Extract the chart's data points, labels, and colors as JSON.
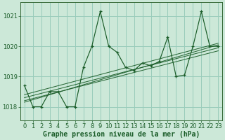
{
  "xlabel": "Graphe pression niveau de la mer (hPa)",
  "bg_color": "#cce8d8",
  "plot_bg_color": "#cce8d8",
  "grid_color": "#99ccbb",
  "line_color": "#1a5c28",
  "ylim": [
    1017.55,
    1021.45
  ],
  "xlim": [
    -0.5,
    23.5
  ],
  "yticks": [
    1018,
    1019,
    1020,
    1021
  ],
  "xticks": [
    0,
    1,
    2,
    3,
    4,
    5,
    6,
    7,
    8,
    9,
    10,
    11,
    12,
    13,
    14,
    15,
    16,
    17,
    18,
    19,
    20,
    21,
    22,
    23
  ],
  "main_series": [
    1018.7,
    1018.0,
    1018.0,
    1018.5,
    1018.5,
    1018.0,
    1018.0,
    1019.3,
    1020.0,
    1021.15,
    1020.0,
    1019.8,
    1019.3,
    1019.2,
    1019.45,
    1019.35,
    1019.5,
    1020.3,
    1019.0,
    1019.05,
    1020.0,
    1021.15,
    1020.0,
    1020.0
  ],
  "trend_lines": [
    {
      "x0": 0,
      "y0": 1018.2,
      "x1": 23,
      "y1": 1019.85
    },
    {
      "x0": 0,
      "y0": 1018.3,
      "x1": 23,
      "y1": 1019.95
    },
    {
      "x0": 0,
      "y0": 1018.15,
      "x1": 23,
      "y1": 1020.05
    },
    {
      "x0": 0,
      "y0": 1018.4,
      "x1": 23,
      "y1": 1020.1
    }
  ],
  "tick_fontsize": 6,
  "label_fontsize": 7
}
